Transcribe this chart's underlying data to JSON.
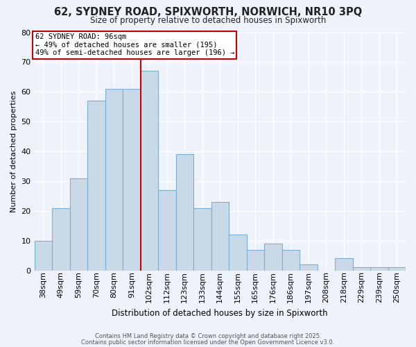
{
  "title": "62, SYDNEY ROAD, SPIXWORTH, NORWICH, NR10 3PQ",
  "subtitle": "Size of property relative to detached houses in Spixworth",
  "xlabel": "Distribution of detached houses by size in Spixworth",
  "ylabel": "Number of detached properties",
  "bar_labels": [
    "38sqm",
    "49sqm",
    "59sqm",
    "70sqm",
    "80sqm",
    "91sqm",
    "102sqm",
    "112sqm",
    "123sqm",
    "133sqm",
    "144sqm",
    "155sqm",
    "165sqm",
    "176sqm",
    "186sqm",
    "197sqm",
    "208sqm",
    "218sqm",
    "229sqm",
    "239sqm",
    "250sqm"
  ],
  "bar_values": [
    10,
    21,
    31,
    57,
    61,
    61,
    67,
    27,
    39,
    21,
    23,
    12,
    7,
    9,
    7,
    2,
    0,
    4,
    1,
    1,
    1
  ],
  "bar_color": "#c9d9e8",
  "bar_edgecolor": "#7bafd4",
  "bg_color": "#eef2fa",
  "grid_color": "#ffffff",
  "vline_x": 5.5,
  "vline_color": "#cc0000",
  "annotation_title": "62 SYDNEY ROAD: 96sqm",
  "annotation_line1": "← 49% of detached houses are smaller (195)",
  "annotation_line2": "49% of semi-detached houses are larger (196) →",
  "annotation_box_color": "#cc0000",
  "ylim": [
    0,
    80
  ],
  "yticks": [
    0,
    10,
    20,
    30,
    40,
    50,
    60,
    70,
    80
  ],
  "footer1": "Contains HM Land Registry data © Crown copyright and database right 2025.",
  "footer2": "Contains public sector information licensed under the Open Government Licence v3.0."
}
